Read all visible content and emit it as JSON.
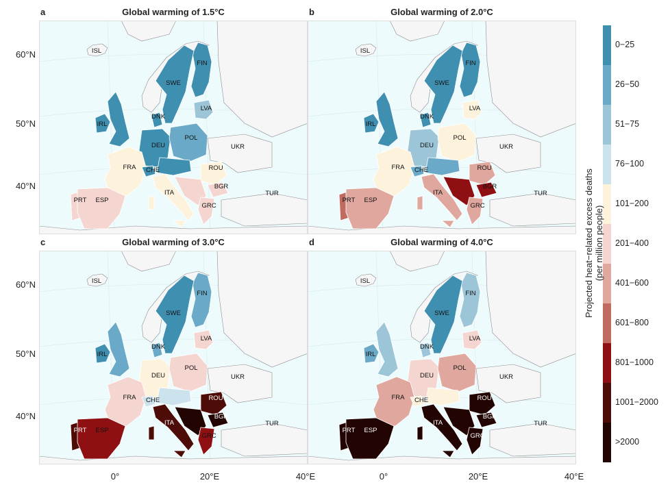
{
  "panels": [
    {
      "letter": "a",
      "title": "Global warming of 1.5°C",
      "scenario": 0
    },
    {
      "letter": "b",
      "title": "Global warming of 2.0°C",
      "scenario": 1
    },
    {
      "letter": "c",
      "title": "Global warming of 3.0°C",
      "scenario": 2
    },
    {
      "letter": "d",
      "title": "Global warming of 4.0°C",
      "scenario": 3
    }
  ],
  "lat_labels": [
    "60°N",
    "50°N",
    "40°N"
  ],
  "lon_labels": [
    "0°",
    "20°E",
    "40°E"
  ],
  "legend": {
    "title_line1": "Projected heat−related excess deaths",
    "title_line2": "(per million people)",
    "classes": [
      {
        "label": "0−25",
        "color": "#3f8fb0"
      },
      {
        "label": "26−50",
        "color": "#6aaac8"
      },
      {
        "label": "51−75",
        "color": "#9cc6d8"
      },
      {
        "label": "76−100",
        "color": "#cce2ec"
      },
      {
        "label": "101−200",
        "color": "#fdf3dd"
      },
      {
        "label": "201−400",
        "color": "#f4d5d0"
      },
      {
        "label": "401−600",
        "color": "#dfa79e"
      },
      {
        "label": "601−800",
        "color": "#c06a60"
      },
      {
        "label": "801−1000",
        "color": "#8f1012"
      },
      {
        "label": "1001−2000",
        "color": "#4d0c07"
      },
      {
        "label": ">2000",
        "color": "#220503"
      }
    ]
  },
  "countries": [
    {
      "code": "ISL",
      "levels": [
        null,
        null,
        null,
        null
      ]
    },
    {
      "code": "FIN",
      "levels": [
        0,
        0,
        1,
        2
      ]
    },
    {
      "code": "SWE",
      "levels": [
        0,
        0,
        0,
        0
      ]
    },
    {
      "code": "LVA",
      "levels": [
        2,
        4,
        5,
        5
      ]
    },
    {
      "code": "IRL",
      "levels": [
        0,
        0,
        0,
        1
      ]
    },
    {
      "code": "DNK",
      "levels": [
        0,
        0,
        1,
        2
      ]
    },
    {
      "code": "DEU",
      "levels": [
        0,
        2,
        4,
        5
      ]
    },
    {
      "code": "POL",
      "levels": [
        1,
        4,
        5,
        6
      ]
    },
    {
      "code": "UKR",
      "levels": [
        null,
        null,
        null,
        null
      ]
    },
    {
      "code": "FRA",
      "levels": [
        4,
        4,
        5,
        6
      ]
    },
    {
      "code": "CHE",
      "levels": [
        0,
        1,
        3,
        4
      ]
    },
    {
      "code": "ROU",
      "levels": [
        4,
        6,
        9,
        10
      ]
    },
    {
      "code": "BGR",
      "levels": [
        5,
        8,
        10,
        10
      ]
    },
    {
      "code": "ITA",
      "levels": [
        4,
        6,
        9,
        10
      ]
    },
    {
      "code": "PRT",
      "levels": [
        5,
        7,
        9,
        10
      ]
    },
    {
      "code": "ESP",
      "levels": [
        5,
        6,
        8,
        10
      ]
    },
    {
      "code": "GRC",
      "levels": [
        5,
        6,
        8,
        10
      ]
    },
    {
      "code": "TUR",
      "levels": [
        null,
        null,
        null,
        null
      ]
    }
  ]
}
